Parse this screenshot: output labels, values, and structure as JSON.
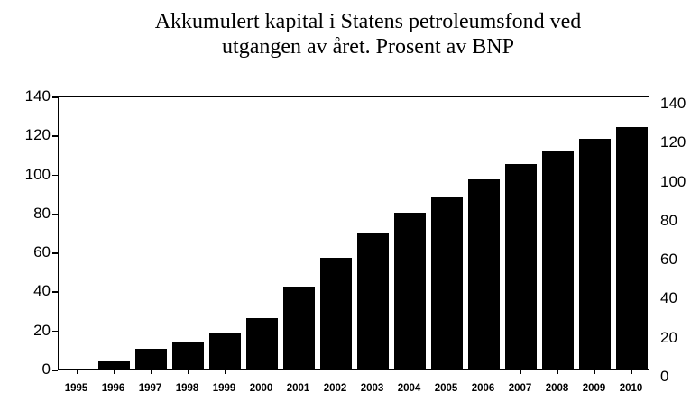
{
  "chart_data": {
    "type": "bar",
    "title": "Akkumulert kapital i Statens petroleumsfond ved utgangen av året. Prosent av BNP",
    "title_lines": [
      "Akkumulert kapital i Statens petroleumsfond ved",
      "utgangen av året.  Prosent av BNP"
    ],
    "xlabel": "",
    "ylabel": "",
    "categories": [
      "1995",
      "1996",
      "1997",
      "1998",
      "1999",
      "2000",
      "2001",
      "2002",
      "2003",
      "2004",
      "2005",
      "2006",
      "2007",
      "2008",
      "2009",
      "2010"
    ],
    "values": [
      0,
      4,
      10,
      14,
      18,
      26,
      42,
      57,
      70,
      80,
      88,
      97,
      105,
      112,
      118,
      124
    ],
    "ylim": [
      0,
      140
    ],
    "yticks": [
      0,
      20,
      40,
      60,
      80,
      100,
      120,
      140
    ],
    "yticks_right": [
      0,
      20,
      40,
      60,
      80,
      100,
      120,
      140
    ],
    "bar_color": "#000000",
    "grid": false,
    "legend": null
  }
}
